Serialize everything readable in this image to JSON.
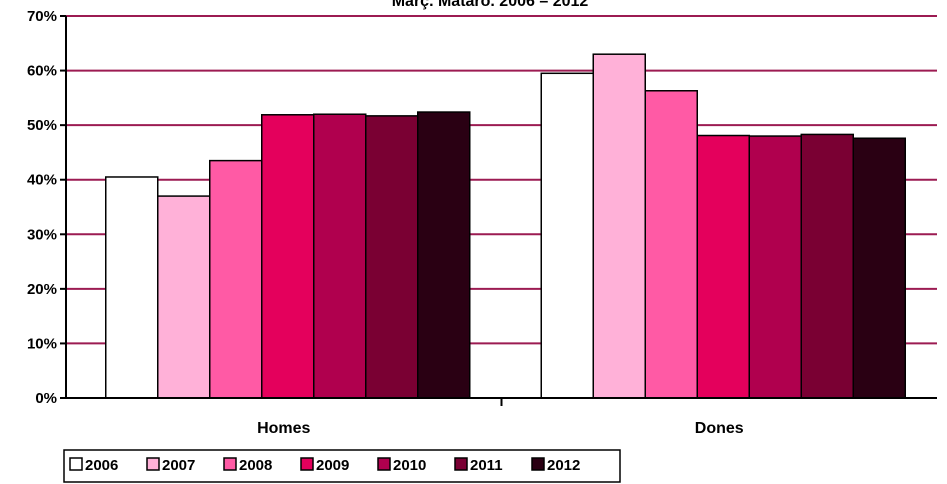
{
  "chart_data": {
    "type": "bar",
    "title": "Març. Mataró. 2006 – 2012",
    "xlabel": "",
    "ylabel": "",
    "categories": [
      "Homes",
      "Dones"
    ],
    "ylim": [
      0,
      70
    ],
    "yticks": [
      "0%",
      "10%",
      "20%",
      "30%",
      "40%",
      "50%",
      "60%",
      "70%"
    ],
    "grid": true,
    "legend_position": "bottom",
    "series": [
      {
        "name": "2006",
        "values": [
          40.5,
          59.5
        ],
        "color": "#FFFFFF"
      },
      {
        "name": "2007",
        "values": [
          37.0,
          63.0
        ],
        "color": "#FFB1D8"
      },
      {
        "name": "2008",
        "values": [
          43.5,
          56.3
        ],
        "color": "#FF5AA5"
      },
      {
        "name": "2009",
        "values": [
          51.9,
          48.1
        ],
        "color": "#E4005C"
      },
      {
        "name": "2010",
        "values": [
          52.0,
          48.0
        ],
        "color": "#B0004E"
      },
      {
        "name": "2011",
        "values": [
          51.7,
          48.3
        ],
        "color": "#7A0033"
      },
      {
        "name": "2012",
        "values": [
          52.4,
          47.6
        ],
        "color": "#2A0013"
      }
    ]
  }
}
